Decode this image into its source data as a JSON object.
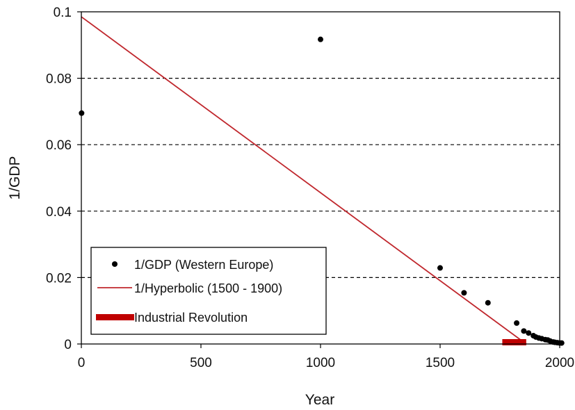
{
  "chart_data": {
    "type": "scatter",
    "xlabel": "Year",
    "ylabel": "1/GDP",
    "xlim": [
      0,
      2000
    ],
    "ylim": [
      0,
      0.1
    ],
    "x_ticks": [
      "0",
      "500",
      "1000",
      "1500",
      "2000"
    ],
    "y_ticks": [
      "0",
      "0.02",
      "0.04",
      "0.06",
      "0.08",
      "0.1"
    ],
    "x_tick_values": [
      0,
      500,
      1000,
      1500,
      2000
    ],
    "y_tick_values": [
      0,
      0.02,
      0.04,
      0.06,
      0.08,
      0.1
    ],
    "grid_y_dashed_values": [
      0.02,
      0.04,
      0.06,
      0.08
    ],
    "legend_position": "bottom-left",
    "series": [
      {
        "name": "1/GDP (Western Europe)",
        "kind": "points",
        "color": "#000000",
        "points": [
          [
            1,
            0.0695
          ],
          [
            1000,
            0.0917
          ],
          [
            1500,
            0.0229
          ],
          [
            1600,
            0.0154
          ],
          [
            1700,
            0.0124
          ],
          [
            1820,
            0.0063
          ],
          [
            1850,
            0.0039
          ],
          [
            1870,
            0.0033
          ],
          [
            1890,
            0.0025
          ],
          [
            1900,
            0.0021
          ],
          [
            1913,
            0.0018
          ],
          [
            1925,
            0.0016
          ],
          [
            1940,
            0.0013
          ],
          [
            1950,
            0.0012
          ],
          [
            1960,
            0.0009
          ],
          [
            1973,
            0.0006
          ],
          [
            1980,
            0.0005
          ],
          [
            1990,
            0.0004
          ],
          [
            2000,
            0.0003
          ],
          [
            2008,
            0.0003
          ]
        ]
      },
      {
        "name": "1/Hyperbolic (1500 - 1900)",
        "kind": "line",
        "color": "#c0272d",
        "points": [
          [
            0,
            0.0985
          ],
          [
            1860,
            0.0
          ]
        ]
      },
      {
        "name": "Industrial Revolution",
        "kind": "range",
        "color": "#c00000",
        "range": [
          1760,
          1860
        ]
      }
    ]
  }
}
